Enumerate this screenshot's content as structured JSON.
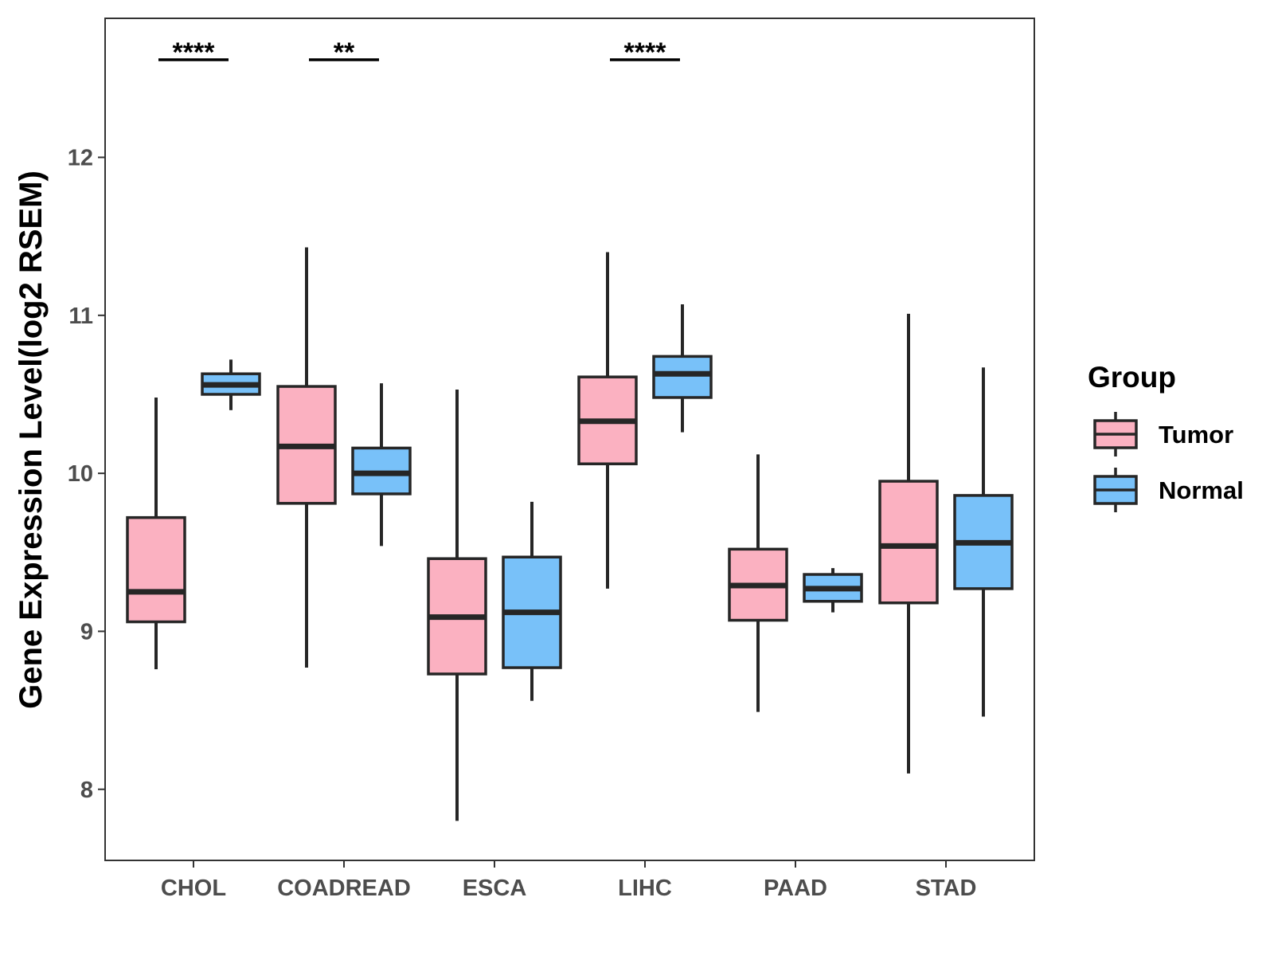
{
  "chart_data": {
    "type": "boxplot",
    "title": "",
    "xlabel": "",
    "ylabel": "Gene Expression Level(log2 RSEM)",
    "ylim": [
      7.55,
      12.88
    ],
    "yticks": [
      8,
      9,
      10,
      11,
      12
    ],
    "categories": [
      "CHOL",
      "COADREAD",
      "ESCA",
      "LIHC",
      "PAAD",
      "STAD"
    ],
    "legend": {
      "title": "Group",
      "position": "right"
    },
    "series": [
      {
        "name": "Tumor",
        "color": "#FBB1C1",
        "boxes": [
          {
            "min": 8.76,
            "q1": 9.06,
            "median": 9.25,
            "q3": 9.72,
            "max": 10.48
          },
          {
            "min": 8.77,
            "q1": 9.81,
            "median": 10.17,
            "q3": 10.55,
            "max": 11.43
          },
          {
            "min": 7.8,
            "q1": 8.73,
            "median": 9.09,
            "q3": 9.46,
            "max": 10.53
          },
          {
            "min": 9.27,
            "q1": 10.06,
            "median": 10.33,
            "q3": 10.61,
            "max": 11.4
          },
          {
            "min": 8.49,
            "q1": 9.07,
            "median": 9.29,
            "q3": 9.52,
            "max": 10.12
          },
          {
            "min": 8.1,
            "q1": 9.18,
            "median": 9.54,
            "q3": 9.95,
            "max": 11.01
          }
        ]
      },
      {
        "name": "Normal",
        "color": "#78C1F9",
        "boxes": [
          {
            "min": 10.4,
            "q1": 10.5,
            "median": 10.56,
            "q3": 10.63,
            "max": 10.72
          },
          {
            "min": 9.54,
            "q1": 9.87,
            "median": 10.0,
            "q3": 10.16,
            "max": 10.57
          },
          {
            "min": 8.56,
            "q1": 8.77,
            "median": 9.12,
            "q3": 9.47,
            "max": 9.82
          },
          {
            "min": 10.26,
            "q1": 10.48,
            "median": 10.63,
            "q3": 10.74,
            "max": 11.07
          },
          {
            "min": 9.12,
            "q1": 9.19,
            "median": 9.27,
            "q3": 9.36,
            "max": 9.4
          },
          {
            "min": 8.46,
            "q1": 9.27,
            "median": 9.56,
            "q3": 9.86,
            "max": 10.67
          }
        ]
      }
    ],
    "significance": [
      {
        "category": "CHOL",
        "label": "****"
      },
      {
        "category": "COADREAD",
        "label": "**"
      },
      {
        "category": "LIHC",
        "label": "****"
      }
    ]
  }
}
